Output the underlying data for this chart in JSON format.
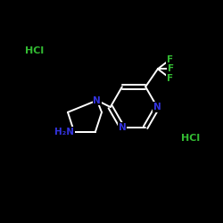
{
  "background_color": "#000000",
  "bond_color": "#ffffff",
  "N_color": "#3333dd",
  "F_color": "#33bb33",
  "HCl_color": "#33bb33",
  "H2N_color": "#3333dd",
  "figsize": [
    2.5,
    2.5
  ],
  "dpi": 100,
  "xlim": [
    0,
    10
  ],
  "ylim": [
    0,
    10
  ],
  "lw": 1.4,
  "fontsize": 7.5
}
